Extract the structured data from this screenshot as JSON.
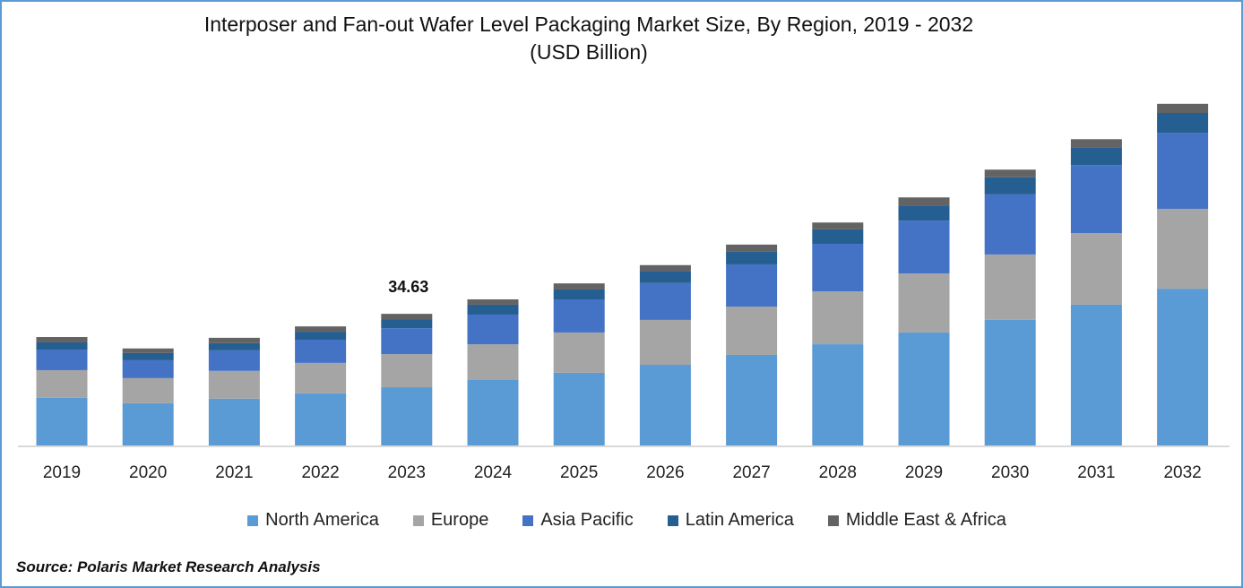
{
  "chart_data": {
    "type": "bar",
    "stacked": true,
    "title": "Interposer and Fan-out Wafer Level Packaging Market Size, By Region, 2019 - 2032",
    "subtitle": "(USD Billion)",
    "categories": [
      "2019",
      "2020",
      "2021",
      "2022",
      "2023",
      "2024",
      "2025",
      "2026",
      "2027",
      "2028",
      "2029",
      "2030",
      "2031",
      "2032"
    ],
    "series": [
      {
        "name": "North America",
        "color": "#5B9BD5",
        "values": [
          12.5,
          11.1,
          12.3,
          13.7,
          15.3,
          17.2,
          19.1,
          21.2,
          23.8,
          26.6,
          29.7,
          33.0,
          37.0,
          41.2
        ]
      },
      {
        "name": "Europe",
        "color": "#A5A5A5",
        "values": [
          7.3,
          6.6,
          7.3,
          8.0,
          8.7,
          9.4,
          10.6,
          11.8,
          12.7,
          13.9,
          15.5,
          17.2,
          18.8,
          21.0
        ]
      },
      {
        "name": "Asia Pacific",
        "color": "#4472C4",
        "values": [
          5.4,
          4.7,
          5.4,
          6.1,
          6.8,
          7.8,
          8.7,
          9.7,
          11.1,
          12.5,
          13.9,
          15.8,
          17.9,
          20.0
        ]
      },
      {
        "name": "Latin America",
        "color": "#255E91",
        "values": [
          1.9,
          1.9,
          1.9,
          2.1,
          2.4,
          2.6,
          2.6,
          3.1,
          3.3,
          3.8,
          4.0,
          4.5,
          4.7,
          5.2
        ]
      },
      {
        "name": "Middle East & Africa",
        "color": "#636363",
        "values": [
          1.4,
          1.2,
          1.4,
          1.4,
          1.4,
          1.4,
          1.6,
          1.6,
          1.9,
          1.8,
          2.1,
          2.0,
          2.1,
          2.4
        ]
      }
    ],
    "annotations": [
      {
        "category": "2023",
        "text": "34.63"
      }
    ],
    "ylim": [
      0,
      92
    ],
    "grid": false,
    "legend": "bottom"
  },
  "source": "Source: Polaris Market Research Analysis"
}
